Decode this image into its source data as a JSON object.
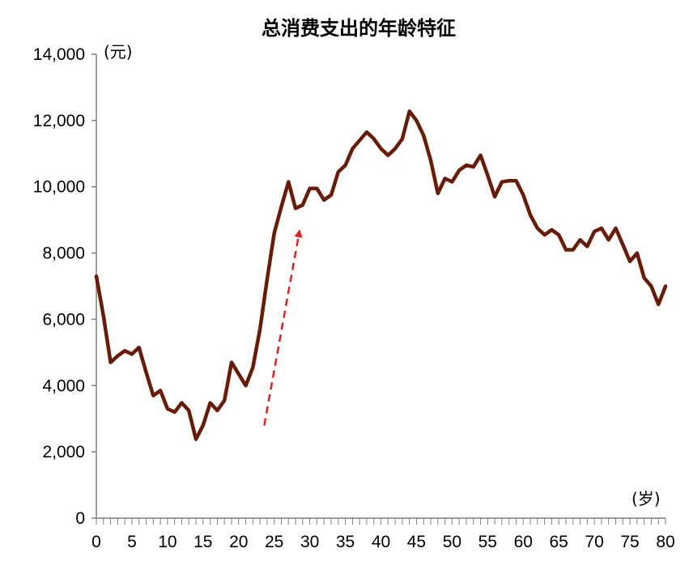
{
  "chart_data": {
    "type": "line",
    "title": "总消费支出的年龄特征",
    "y_unit_label": "(元)",
    "x_unit_label": "(岁)",
    "xlim": [
      0,
      80
    ],
    "ylim": [
      0,
      14000
    ],
    "x_ticks": [
      0,
      5,
      10,
      15,
      20,
      25,
      30,
      35,
      40,
      45,
      50,
      55,
      60,
      65,
      70,
      75,
      80
    ],
    "y_ticks": [
      0,
      2000,
      4000,
      6000,
      8000,
      10000,
      12000,
      14000
    ],
    "y_tick_labels": [
      "0",
      "2,000",
      "4,000",
      "6,000",
      "8,000",
      "10,000",
      "12,000",
      "14,000"
    ],
    "grid": false,
    "series_color": "#6b1a05",
    "annotation_color": "#ee1c1c",
    "series": [
      {
        "x": [
          0,
          1,
          2,
          3,
          4,
          5,
          6,
          7,
          8,
          9,
          10,
          11,
          12,
          13,
          14,
          15,
          16,
          17,
          18,
          19,
          20,
          21,
          22,
          23,
          24,
          25,
          26,
          27,
          28,
          29,
          30,
          31,
          32,
          33,
          34,
          35,
          36,
          37,
          38,
          39,
          40,
          41,
          42,
          43,
          44,
          45,
          46,
          47,
          48,
          49,
          50,
          51,
          52,
          53,
          54,
          55,
          56,
          57,
          58,
          59,
          60,
          61,
          62,
          63,
          64,
          65,
          66,
          67,
          68,
          69,
          70,
          71,
          72,
          73,
          74,
          75,
          76,
          77,
          78,
          79,
          80
        ],
        "values": [
          7300,
          6100,
          4700,
          4900,
          5050,
          4950,
          5150,
          4400,
          3700,
          3850,
          3300,
          3200,
          3480,
          3250,
          2380,
          2800,
          3480,
          3250,
          3550,
          4700,
          4350,
          4000,
          4550,
          5700,
          7200,
          8600,
          9400,
          10150,
          9350,
          9450,
          9950,
          9950,
          9600,
          9750,
          10450,
          10650,
          11150,
          11400,
          11650,
          11450,
          11150,
          10950,
          11150,
          11450,
          12280,
          12000,
          11550,
          10800,
          9800,
          10250,
          10150,
          10500,
          10650,
          10600,
          10950,
          10350,
          9700,
          10150,
          10180,
          10180,
          9750,
          9150,
          8750,
          8550,
          8700,
          8550,
          8100,
          8100,
          8400,
          8200,
          8650,
          8750,
          8400,
          8750,
          8250,
          7750,
          8000,
          7250,
          7000,
          6450,
          7000
        ]
      }
    ],
    "annotations": [
      {
        "type": "arrow",
        "style": "dashed",
        "from": [
          23.6,
          2800
        ],
        "to": [
          28.5,
          8600
        ]
      }
    ]
  }
}
